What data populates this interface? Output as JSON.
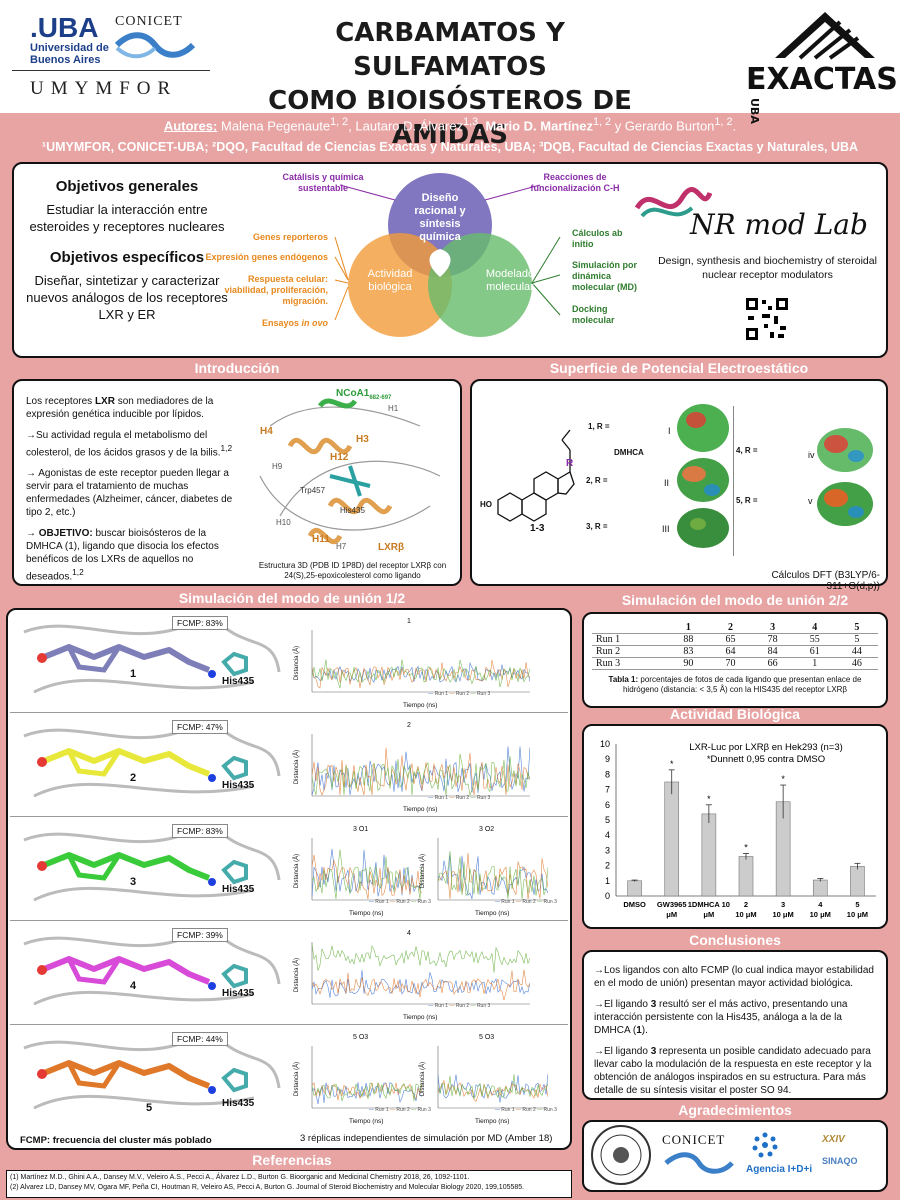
{
  "header": {
    "title1": "CARBAMATOS Y SULFAMATOS",
    "title2": "COMO BIOISÓSTEROS DE AMIDAS",
    "uba": ".UBA",
    "uba_sub1": "Universidad de",
    "uba_sub2": "Buenos Aires",
    "conicet": "CONICET",
    "umymfor": "UMYMFOR",
    "exactas": "EXACTAS",
    "exactas_uba": "UBA"
  },
  "authors": {
    "label": "Autores:",
    "a1": "Malena Pegenaute",
    "a1_sup": "1, 2",
    "a2": ", Lautaro D. Álvarez",
    "a2_sup": "1,3",
    "a3": "Mario D. Martínez",
    "a3_sup": "1, 2",
    "a4": " y Gerardo Burton",
    "a4_sup": "1, 2",
    "end": "."
  },
  "affiliations": "¹UMYMFOR, CONICET-UBA; ²DQO, Facultad de Ciencias Exactas y Naturales, UBA; ³DQB, Facultad de Ciencias Exactas y Naturales, UBA",
  "objectives": {
    "gen_h": "Objetivos generales",
    "gen_t": "Estudiar la interacción entre esteroides y receptores nucleares",
    "spec_h": "Objetivos específicos",
    "spec_t": "Diseñar, sintetizar y caracterizar nuevos análogos de los receptores LXR y ER"
  },
  "venn": {
    "top": "Diseño racional y síntesis química",
    "left": "Actividad biológica",
    "right": "Modelado molecular",
    "p1": "Catálisis y química sustentable",
    "p2": "Reacciones de funcionalización C-H",
    "o1": "Genes reporteros",
    "o2": "Expresión genes endógenos",
    "o3": "Respuesta celular: viabilidad, proliferación, migración.",
    "o4a": "Ensayos ",
    "o4b": "in ovo",
    "g1": "Cálculos ab initio",
    "g2": "Simulación por dinámica molecular (MD)",
    "g3": "Docking molecular",
    "colors": {
      "top": "#6b5fb5",
      "left": "#f29b38",
      "right": "#66bb6a"
    }
  },
  "lab": {
    "name": "NR mod Lab",
    "desc": "Design, synthesis and biochemistry of steroidal nuclear receptor modulators"
  },
  "sections": {
    "intro": "Introducción",
    "pot": "Superficie de Potencial Electroestático",
    "sim1": "Simulación del modo de unión 1/2",
    "sim2": "Simulación del modo de unión 2/2",
    "act": "Actividad Biológica",
    "concl": "Conclusiones",
    "agrad": "Agradecimientos",
    "refs": "Referencias"
  },
  "intro": {
    "p1a": "Los receptores ",
    "p1b": "LXR",
    "p1c": " son mediadores de la expresión genética inducible por lípidos.",
    "p2": "→Su actividad regula el metabolismo del colesterol, de los ácidos grasos y de la bilis.",
    "p2sup": "1,2",
    "p3": "→ Agonistas de este receptor pueden llegar a servir para el tratamiento de muchas enfermedades (Alzheimer, cáncer, diabetes de tipo 2, etc.)",
    "p4a": "→ ",
    "p4b": "OBJETIVO:",
    "p4c": " buscar bioisósteros de la DMHCA (1), ligando que disocia los efectos benéficos de los LXRs de aquellos no deseados.",
    "p4sup": "1,2",
    "labels": [
      "NCoA1",
      "682-697",
      "H1",
      "H4",
      "H3",
      "H12",
      "H9",
      "Trp457",
      "His435",
      "H10",
      "H11",
      "H7",
      "LXRβ"
    ],
    "caption": "Estructura 3D (PDB ID 1P8D) del receptor LXRβ con 24(S),25-epoxicolesterol como ligando"
  },
  "pot": {
    "r_labels": [
      "1, R =",
      "2, R =",
      "3, R =",
      "4, R =",
      "5, R ="
    ],
    "roman": [
      "I",
      "II",
      "III",
      "iv",
      "v"
    ],
    "dmhca": "DMHCA",
    "ho": "HO",
    "r": "R",
    "range": "1-3",
    "footer": "Cálculos DFT (B3LYP/6-311+G(d,p))"
  },
  "sim1": {
    "panels": [
      {
        "id": "1",
        "fcmp": "FCMP: 83%",
        "his": "His435",
        "titles": [
          "1"
        ]
      },
      {
        "id": "2",
        "fcmp": "FCMP: 47%",
        "his": "His435",
        "titles": [
          "2"
        ]
      },
      {
        "id": "3",
        "fcmp": "FCMP: 83%",
        "his": "His435",
        "titles": [
          "3 O1",
          "3 O2"
        ]
      },
      {
        "id": "4",
        "fcmp": "FCMP: 39%",
        "his": "His435",
        "titles": [
          "4"
        ]
      },
      {
        "id": "5",
        "fcmp": "FCMP: 44%",
        "his": "His435",
        "titles": [
          "5 O3",
          "5 O3"
        ]
      }
    ],
    "ylabel": "Distancia (Å)",
    "xlabel": "Tiempo (ns)",
    "legend": [
      "Run 1",
      "Run 2",
      "Run 3"
    ],
    "foot1": "FCMP: frecuencia del cluster más poblado",
    "foot2": "3 réplicas independientes de simulación por MD (Amber 18)"
  },
  "table": {
    "cols": [
      "",
      "1",
      "2",
      "3",
      "4",
      "5"
    ],
    "rows": [
      [
        "Run 1",
        "88",
        "65",
        "78",
        "55",
        "5"
      ],
      [
        "Run 2",
        "83",
        "64",
        "84",
        "61",
        "44"
      ],
      [
        "Run 3",
        "90",
        "70",
        "66",
        "1",
        "46"
      ]
    ],
    "caption_b": "Tabla 1:",
    "caption": " porcentajes de fotos de cada ligando que presentan enlace de hidrógeno (distancia: < 3,5 Å) con la HIS435 del receptor LXRβ"
  },
  "chart_data": {
    "type": "bar",
    "title": "LXR-Luc por LXRβ en Hek293 (n=3)",
    "subtitle": "*Dunnett 0,95 contra DMSO",
    "categories": [
      "DMSO",
      "GW3965 1 μM",
      "1DMHCA 10 μM",
      "2 10 μM",
      "3 10 μM",
      "4 10 μM",
      "5 10 μM"
    ],
    "cat_lines": [
      [
        "DMSO",
        ""
      ],
      [
        "GW3965",
        "μM"
      ],
      [
        "1DMHCA 10",
        "μM"
      ],
      [
        "2",
        "10 μM"
      ],
      [
        "3",
        "10 μM"
      ],
      [
        "4",
        "10 μM"
      ],
      [
        "5",
        "10 μM"
      ]
    ],
    "values": [
      1.0,
      7.5,
      5.4,
      2.6,
      6.2,
      1.05,
      1.95
    ],
    "errors": [
      0.05,
      0.8,
      0.6,
      0.2,
      1.1,
      0.1,
      0.2
    ],
    "significant": [
      false,
      true,
      true,
      true,
      true,
      false,
      false
    ],
    "ylim": [
      0,
      10
    ],
    "yticks": [
      "0",
      "1",
      "2",
      "3",
      "4",
      "5",
      "6",
      "7",
      "8",
      "9",
      "10"
    ],
    "bar_color": "#cccccc"
  },
  "concl": {
    "c1": "→Los ligandos con alto FCMP (lo cual indica mayor estabilidad en el modo de unión) presentan mayor actividad biológica.",
    "c2a": "→El ligando ",
    "c2b": "3",
    "c2c": " resultó ser el más activo, presentando una interacción persistente con la His435, análoga a la de la DMHCA (",
    "c2d": "1",
    "c2e": ").",
    "c3a": "→El ligando ",
    "c3b": "3",
    "c3c": " representa un posible candidato adecuado para llevar cabo la modulación de la respuesta en este receptor y la obtención de análogos inspirados en su estructura. Para más detalle de su síntesis visitar el poster SO 94."
  },
  "agrad": {
    "conicet": "CONICET",
    "agencia": "Agencia I+D+i",
    "sinaqo": "SINAQO",
    "xxiv": "XXIV"
  },
  "refs": {
    "r1": "(1) Martínez M.D., Ghini A.A., Dansey M.V., Veleiro A.S., Pecci A., Álvarez L.D., Burton G. Bioorganic and Medicinal Chemistry 2018, 26, 1092-1101.",
    "r2": "(2) Alvarez LD, Dansey MV, Ogara MF, Peña CI, Houtman R, Veleiro AS, Pecci A, Burton G. Journal of Steroid Biochemistry and Molecular Biology 2020, 199,105585."
  }
}
